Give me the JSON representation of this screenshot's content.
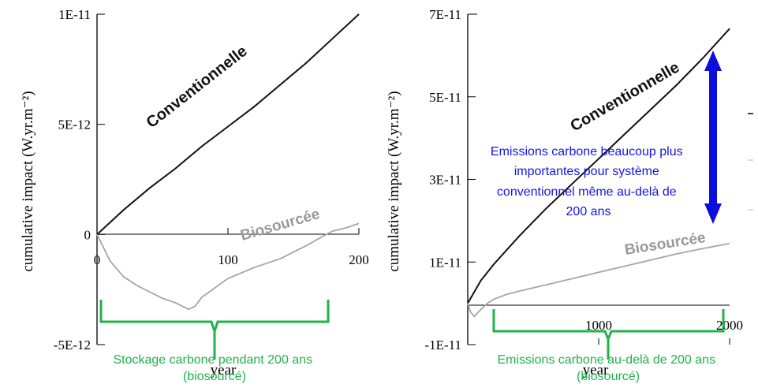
{
  "colors": {
    "conventional": "#111111",
    "biosourced": "#a6a6a6",
    "axis": "#000000",
    "annotation_blue": "#1515e6",
    "arrow_blue": "#0d0ddc",
    "brace_green": "#22b24c"
  },
  "chart_data": [
    {
      "type": "line",
      "xlabel": "year",
      "ylabel": "cumulative impact (W.yr.m⁻²)",
      "xlim": [
        0,
        200
      ],
      "ylim": [
        -5e-12,
        1e-11
      ],
      "x_ticks": [
        0,
        100,
        200
      ],
      "x_tick_labels": [
        "0",
        "100",
        "200"
      ],
      "y_ticks": [
        1e-11,
        5e-12,
        0,
        -5e-12
      ],
      "y_tick_labels": [
        "1E-11",
        "5E-12",
        "0",
        "-5E-12"
      ],
      "grid": false,
      "series": [
        {
          "name": "Conventionnelle",
          "x": [
            0,
            20,
            40,
            60,
            80,
            100,
            120,
            140,
            160,
            180,
            200
          ],
          "y": [
            0,
            1.1e-12,
            2.1e-12,
            3e-12,
            4e-12,
            4.9e-12,
            5.8e-12,
            6.8e-12,
            7.8e-12,
            8.9e-12,
            1e-11
          ]
        },
        {
          "name": "Biosourcée",
          "x": [
            0,
            10,
            20,
            30,
            40,
            50,
            60,
            70,
            75,
            80,
            100,
            120,
            140,
            160,
            175,
            180,
            190,
            200
          ],
          "y": [
            0,
            -1.2e-12,
            -1.9e-12,
            -2.3e-12,
            -2.6e-12,
            -2.9e-12,
            -3.1e-12,
            -3.4e-12,
            -3.25e-12,
            -2.85e-12,
            -2e-12,
            -1.5e-12,
            -1.1e-12,
            -5e-13,
            0,
            1.5e-13,
            3e-13,
            5e-13
          ]
        }
      ],
      "annotation": "Stockage carbone pendant 200 ans\n(biosourcé)"
    },
    {
      "type": "line",
      "xlabel": "year",
      "ylabel": "cumulative impact (W.yr.m⁻²)",
      "xlim": [
        0,
        2000
      ],
      "ylim": [
        -1e-11,
        7e-11
      ],
      "x_ticks": [
        1000,
        2000
      ],
      "x_tick_labels": [
        "1000",
        "2000"
      ],
      "y_ticks": [
        7e-11,
        5e-11,
        3e-11,
        1e-11,
        -1e-11
      ],
      "y_tick_labels": [
        "7E-11",
        "5E-11",
        "3E-11",
        "1E-11",
        "-1E-11"
      ],
      "grid": false,
      "series": [
        {
          "name": "Conventionnelle",
          "x": [
            0,
            100,
            200,
            400,
            600,
            800,
            1000,
            1200,
            1400,
            1600,
            1800,
            2000
          ],
          "y": [
            0,
            5.5e-12,
            9.5e-12,
            1.65e-11,
            2.3e-11,
            2.9e-11,
            3.5e-11,
            4.1e-11,
            4.7e-11,
            5.3e-11,
            5.95e-11,
            6.65e-11
          ]
        },
        {
          "name": "Biosourcée",
          "x": [
            0,
            20,
            50,
            100,
            150,
            200,
            300,
            400,
            600,
            800,
            1000,
            1200,
            1400,
            1600,
            1800,
            2000
          ],
          "y": [
            0,
            -2e-12,
            -3.2e-12,
            -1.5e-12,
            0,
            1e-12,
            2.2e-12,
            3e-12,
            4.5e-12,
            6e-12,
            7.5e-12,
            9e-12,
            1.05e-11,
            1.2e-11,
            1.33e-11,
            1.45e-11
          ]
        }
      ],
      "annotation": "Emissions carbone beaucoup plus\nimportantes pour système\nconventionnel même au-delà de\n200 ans",
      "bottom_annotation": "Emissions carbone au-delà de 200 ans\n(biosourcé)"
    }
  ]
}
